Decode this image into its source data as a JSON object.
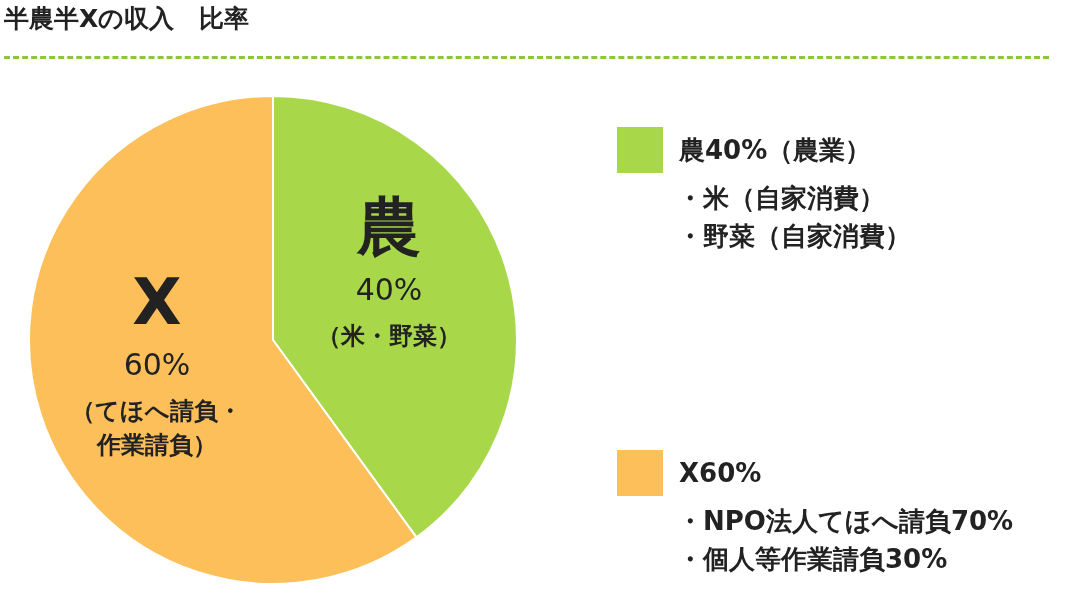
{
  "chart_data": {
    "type": "pie",
    "title": "半農半Xの収入　比率",
    "categories": [
      "農",
      "X"
    ],
    "values": [
      40,
      60
    ],
    "value_labels": [
      "40%",
      "60%"
    ],
    "colors": [
      "#a8d84a",
      "#fdbf5a"
    ],
    "annotations": [
      "（米・野菜）",
      "（てほへ請負・作業請負）",
      "農40%（農業）",
      "・米（自家消費）",
      "・野菜（自家消費）",
      "X60%",
      "・NPO法人てほへ請負70%",
      "・個人等作業請負30%"
    ]
  }
}
